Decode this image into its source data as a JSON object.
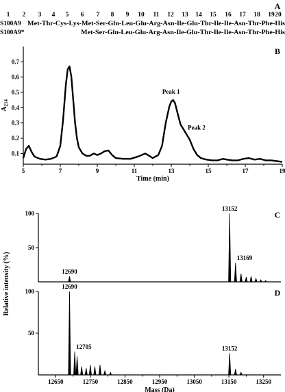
{
  "panels": {
    "A": "A",
    "B": "B",
    "C": "C",
    "D": "D"
  },
  "sequence": {
    "positions": [
      "1",
      "2",
      "3",
      "4",
      "5",
      "6",
      "7",
      "8",
      "9",
      "10",
      "11",
      "12",
      "13",
      "14",
      "15",
      "16",
      "17",
      "18",
      "19",
      "20"
    ],
    "rows": [
      {
        "name": "S100A9",
        "residues": [
          "Met",
          "Thr",
          "Cys",
          "Lys",
          "Met",
          "Ser",
          "Gln",
          "Leu",
          "Glu",
          "Arg",
          "Asn",
          "Ile",
          "Glu",
          "Thr",
          "Ile",
          "Ile",
          "Asn",
          "Thr",
          "Phe",
          "His"
        ]
      },
      {
        "name": "S100A9*",
        "residues": [
          "",
          "",
          "",
          "",
          "Met",
          "Ser",
          "Gln",
          "Leu",
          "Glu",
          "Arg",
          "Asn",
          "Ile",
          "Glu",
          "Thr",
          "Ile",
          "Ile",
          "Asn",
          "Thr",
          "Phe",
          "His"
        ]
      }
    ]
  },
  "chart_data": [
    {
      "panel": "B",
      "type": "line",
      "xlabel": "Time (min)",
      "ylabel": "A214",
      "xlim": [
        5,
        19
      ],
      "ylim": [
        0.03,
        0.8
      ],
      "xticks": [
        "5",
        "7",
        "9",
        "11",
        "13",
        "15",
        "17",
        "19"
      ],
      "yticks": [
        "0.1",
        "0.2",
        "0.3",
        "0.4",
        "0.5",
        "0.6",
        "0.7"
      ],
      "x": [
        5.0,
        5.15,
        5.3,
        5.45,
        5.6,
        5.9,
        6.2,
        6.5,
        6.8,
        7.0,
        7.15,
        7.3,
        7.4,
        7.5,
        7.6,
        7.7,
        7.8,
        7.9,
        8.0,
        8.2,
        8.4,
        8.6,
        8.8,
        9.0,
        9.2,
        9.4,
        9.6,
        9.8,
        10.0,
        10.4,
        10.8,
        11.2,
        11.6,
        11.8,
        12.0,
        12.3,
        12.5,
        12.7,
        12.9,
        13.0,
        13.1,
        13.2,
        13.35,
        13.5,
        13.65,
        13.8,
        14.0,
        14.2,
        14.4,
        14.6,
        14.9,
        15.2,
        15.5,
        15.8,
        16.0,
        16.3,
        16.6,
        16.9,
        17.2,
        17.5,
        17.8,
        18.1,
        18.4,
        18.7,
        19.0
      ],
      "y": [
        0.07,
        0.13,
        0.15,
        0.11,
        0.08,
        0.065,
        0.06,
        0.065,
        0.08,
        0.15,
        0.32,
        0.55,
        0.65,
        0.67,
        0.6,
        0.45,
        0.3,
        0.2,
        0.14,
        0.1,
        0.085,
        0.085,
        0.1,
        0.09,
        0.1,
        0.115,
        0.12,
        0.09,
        0.07,
        0.065,
        0.065,
        0.08,
        0.1,
        0.085,
        0.07,
        0.09,
        0.15,
        0.3,
        0.41,
        0.44,
        0.45,
        0.43,
        0.36,
        0.29,
        0.26,
        0.23,
        0.19,
        0.13,
        0.09,
        0.07,
        0.06,
        0.055,
        0.055,
        0.065,
        0.06,
        0.055,
        0.055,
        0.065,
        0.07,
        0.06,
        0.065,
        0.055,
        0.055,
        0.05,
        0.045
      ],
      "annotations": [
        {
          "text": "Peak 1",
          "x": 13.1,
          "y": 0.45
        },
        {
          "text": "Peak 2",
          "x": 14.0,
          "y": 0.23
        }
      ]
    },
    {
      "panel": "C",
      "type": "line",
      "xlim": [
        12600,
        13300
      ],
      "ylim": [
        0,
        100
      ],
      "yticks": [
        "50",
        "100"
      ],
      "peaks": [
        {
          "x": 12690,
          "y": 8,
          "label": "12690"
        },
        {
          "x": 13152,
          "y": 100,
          "label": "13152"
        },
        {
          "x": 13169,
          "y": 28,
          "label": "13169"
        },
        {
          "x": 13185,
          "y": 12
        },
        {
          "x": 13200,
          "y": 7
        },
        {
          "x": 13214,
          "y": 8
        },
        {
          "x": 13228,
          "y": 5
        },
        {
          "x": 13242,
          "y": 3
        },
        {
          "x": 13256,
          "y": 2
        }
      ]
    },
    {
      "panel": "D",
      "type": "line",
      "xlabel": "Mass (Da)",
      "ylabel": "Relative intensity (%)",
      "xlim": [
        12600,
        13300
      ],
      "ylim": [
        0,
        100
      ],
      "yticks": [
        "50",
        "100"
      ],
      "xticks": [
        "12650",
        "12750",
        "12850",
        "12950",
        "13050",
        "13150",
        "13250"
      ],
      "peaks": [
        {
          "x": 12690,
          "y": 100,
          "label": "12690"
        },
        {
          "x": 12705,
          "y": 28,
          "label": "12705"
        },
        {
          "x": 12712,
          "y": 22
        },
        {
          "x": 12725,
          "y": 10
        },
        {
          "x": 12738,
          "y": 8
        },
        {
          "x": 12750,
          "y": 12
        },
        {
          "x": 12763,
          "y": 10
        },
        {
          "x": 12778,
          "y": 12
        },
        {
          "x": 12792,
          "y": 5
        },
        {
          "x": 12808,
          "y": 3
        },
        {
          "x": 13152,
          "y": 26,
          "label": "13152"
        },
        {
          "x": 13169,
          "y": 7
        },
        {
          "x": 13185,
          "y": 3
        }
      ]
    }
  ]
}
